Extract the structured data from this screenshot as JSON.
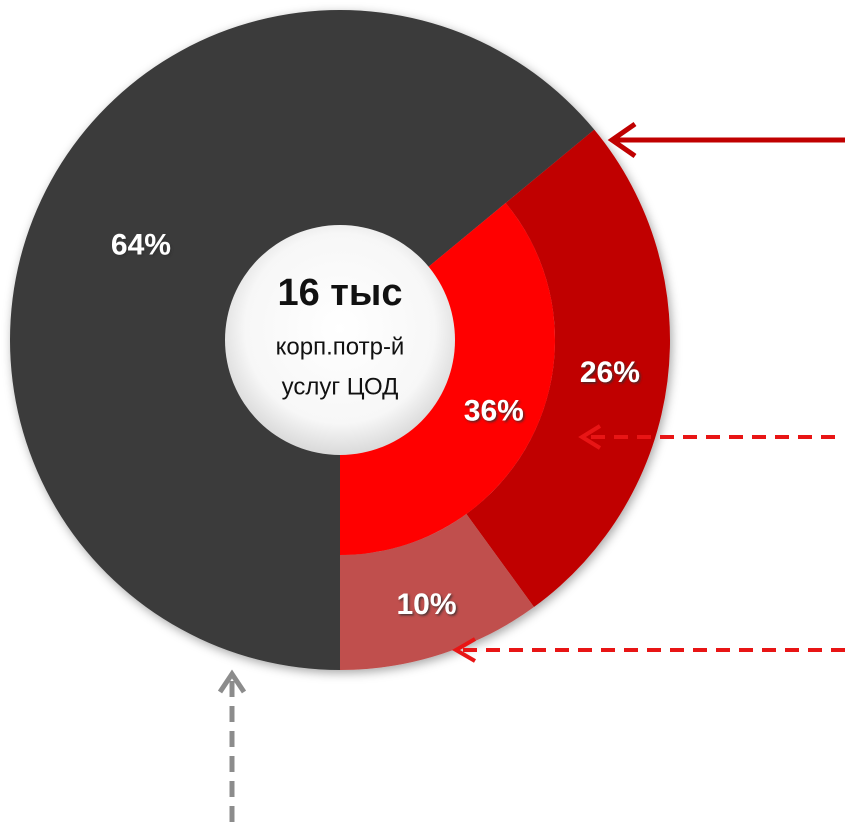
{
  "chart_data": {
    "type": "donut",
    "series": [
      {
        "name": "outer",
        "values": [
          64,
          26,
          10
        ],
        "value_labels": [
          "64%",
          "26%",
          "10%"
        ],
        "colors": [
          "#3a3a3a",
          "#c00000",
          "#c0504d"
        ]
      },
      {
        "name": "inner",
        "values": [
          36
        ],
        "value_labels": [
          "36%"
        ],
        "colors": [
          "#ff0000"
        ]
      }
    ],
    "annotations": [
      "16 тыс",
      "корп.потр-й",
      "услуг ЦОД"
    ]
  }
}
